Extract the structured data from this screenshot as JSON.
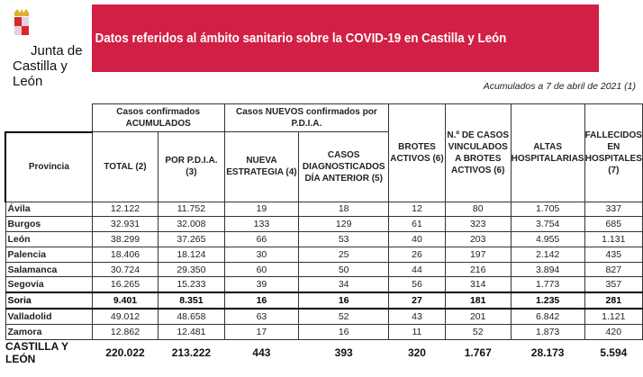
{
  "logo": {
    "line1": "Junta de",
    "line2": "Castilla y León"
  },
  "banner": {
    "title": "Datos referidos al ámbito sanitario sobre la COVID-19 en Castilla y León",
    "color": "#d21f45"
  },
  "date_note": "Acumulados a 7 de abril de 2021 (1)",
  "table": {
    "group_headers": {
      "acumulados": "Casos confirmados ACUMULADOS",
      "nuevos": "Casos NUEVOS confirmados por P.D.I.A."
    },
    "headers": [
      "Provincia",
      "TOTAL (2)",
      "POR P.D.I.A. (3)",
      "NUEVA ESTRATEGIA (4)",
      "CASOS DIAGNOSTICADOS DÍA ANTERIOR (5)",
      "BROTES ACTIVOS (6)",
      "N.º DE CASOS VINCULADOS A BROTES ACTIVOS (6)",
      "ALTAS HOSPITALARIAS",
      "FALLECIDOS EN HOSPITALES (7)"
    ],
    "rows": [
      [
        "Ávila",
        "12.122",
        "11.752",
        "19",
        "18",
        "12",
        "80",
        "1.705",
        "337"
      ],
      [
        "Burgos",
        "32.931",
        "32.008",
        "133",
        "129",
        "61",
        "323",
        "3.754",
        "685"
      ],
      [
        "León",
        "38.299",
        "37.265",
        "66",
        "53",
        "40",
        "203",
        "4.955",
        "1.131"
      ],
      [
        "Palencia",
        "18.406",
        "18.124",
        "30",
        "25",
        "26",
        "197",
        "2.142",
        "435"
      ],
      [
        "Salamanca",
        "30.724",
        "29.350",
        "60",
        "50",
        "44",
        "216",
        "3.894",
        "827"
      ],
      [
        "Segovia",
        "16.265",
        "15.233",
        "39",
        "34",
        "56",
        "314",
        "1.773",
        "357"
      ],
      [
        "Soria",
        "9.401",
        "8.351",
        "16",
        "16",
        "27",
        "181",
        "1.235",
        "281"
      ],
      [
        "Valladolid",
        "49.012",
        "48.658",
        "63",
        "52",
        "43",
        "201",
        "6.842",
        "1.121"
      ],
      [
        "Zamora",
        "12.862",
        "12.481",
        "17",
        "16",
        "11",
        "52",
        "1.873",
        "420"
      ]
    ],
    "total": [
      "CASTILLA Y LEÓN",
      "220.022",
      "213.222",
      "443",
      "393",
      "320",
      "1.767",
      "28.173",
      "5.594"
    ]
  }
}
